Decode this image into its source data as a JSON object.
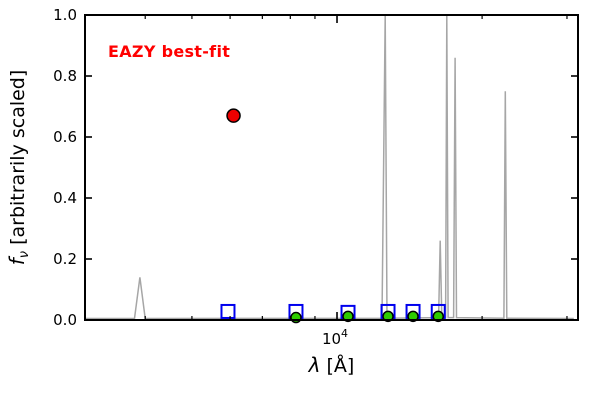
{
  "figure": {
    "annotation": "EAZY best-fit",
    "annotation_color": "#ff0000",
    "background": "#ffffff"
  },
  "axes": {
    "ylabel": {
      "symbol": "f",
      "sub": "ν",
      "rest": " [arbitrarily scaled]"
    },
    "xlabel": {
      "symbol": "λ",
      "rest": " [Å]"
    },
    "ytick_values": [
      0.0,
      0.2,
      0.4,
      0.6,
      0.8,
      1.0
    ],
    "ytick_labels": [
      "0.0",
      "0.2",
      "0.4",
      "0.6",
      "0.8",
      "1.0"
    ],
    "xtick_major": {
      "value": 10000,
      "base": "10",
      "exp": "4"
    },
    "xtick_minor_values": [
      4000,
      5000,
      6000,
      7000,
      8000,
      9000,
      20000,
      30000
    ],
    "spine_color": "#000000"
  },
  "chart_data": {
    "type": "line",
    "title": "",
    "annotation": "EAZY best-fit",
    "xlabel": "λ [Å]",
    "ylabel": "f_ν [arbitrarily scaled]",
    "x_scale": "log",
    "xlim": [
      3000,
      31623
    ],
    "ylim": [
      0.0,
      1.0
    ],
    "grid": false,
    "legend": "none",
    "series": [
      {
        "name": "best-fit-template-spectrum",
        "kind": "line",
        "color": "#a6a6a6",
        "linewidth": 1.5,
        "points": [
          [
            3000,
            0.005
          ],
          [
            3800,
            0.005
          ],
          [
            3900,
            0.14
          ],
          [
            4000,
            0.005
          ],
          [
            12400,
            0.006
          ],
          [
            12590,
            1.02
          ],
          [
            12700,
            0.006
          ],
          [
            16250,
            0.008
          ],
          [
            16370,
            0.26
          ],
          [
            16500,
            0.008
          ],
          [
            16800,
            0.008
          ],
          [
            16900,
            1.02
          ],
          [
            17000,
            0.008
          ],
          [
            17450,
            0.008
          ],
          [
            17580,
            0.86
          ],
          [
            17700,
            0.008
          ],
          [
            22200,
            0.006
          ],
          [
            22340,
            0.75
          ],
          [
            22500,
            0.006
          ],
          [
            31000,
            0.005
          ]
        ]
      },
      {
        "name": "template-photometry-squares",
        "kind": "open-square",
        "color": "#0000ee",
        "size": 13,
        "points": [
          [
            5940,
            0.028
          ],
          [
            8220,
            0.028
          ],
          [
            10540,
            0.025
          ],
          [
            12760,
            0.028
          ],
          [
            14380,
            0.028
          ],
          [
            16220,
            0.028
          ]
        ]
      },
      {
        "name": "observed-photometry-green",
        "kind": "circle",
        "color": "#2ecc00",
        "edge": "#000000",
        "radius": 5,
        "points": [
          [
            8220,
            0.008
          ],
          [
            10540,
            0.012
          ],
          [
            12760,
            0.012
          ],
          [
            14380,
            0.012
          ],
          [
            16220,
            0.012
          ]
        ]
      },
      {
        "name": "observed-photometry-red",
        "kind": "circle",
        "color": "#ee0000",
        "edge": "#000000",
        "radius": 6.5,
        "points": [
          [
            6100,
            0.67
          ]
        ]
      }
    ]
  }
}
